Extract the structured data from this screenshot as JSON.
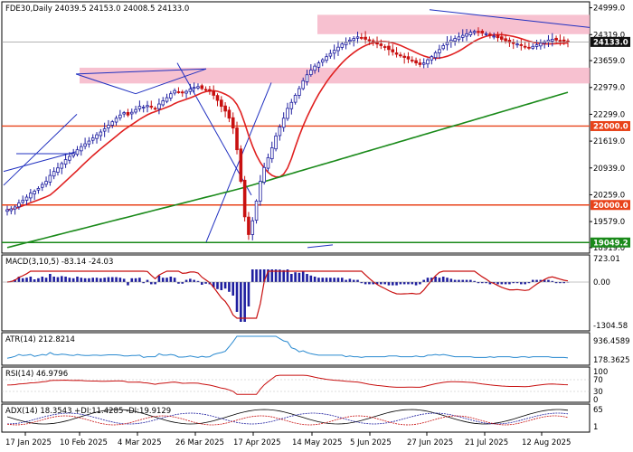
{
  "chart_data": {
    "type": "candlestick",
    "symbol": "FDE30",
    "timeframe": "Daily",
    "ohlc_label": "24039.5 24153.0 24008.5 24133.0",
    "last_price": "24133.0",
    "y_ticks": [
      "24999.0",
      "24319.0",
      "23659.0",
      "22979.0",
      "22299.0",
      "21619.0",
      "20939.0",
      "20259.0",
      "19579.0",
      "18919.0"
    ],
    "x_ticks": [
      "17 Jan 2025",
      "10 Feb 2025",
      "4 Mar 2025",
      "26 Mar 2025",
      "17 Apr 2025",
      "14 May 2025",
      "5 Jun 2025",
      "27 Jun 2025",
      "21 Jul 2025",
      "12 Aug 2025"
    ],
    "horizontal_levels": [
      {
        "label": "22000.0",
        "value": 22000,
        "color": "#e8431a"
      },
      {
        "label": "20000.0",
        "value": 20000,
        "color": "#e8431a"
      },
      {
        "label": "19049.2",
        "value": 19049.2,
        "color": "#1a8a1a"
      }
    ],
    "colors": {
      "ma_fast": "#e02020",
      "ma_slow": "#1a8a1a",
      "zone": "#f6b6c8",
      "trendline": "#2030c0",
      "bull": "#1f1fa0",
      "bear": "#c81010",
      "level": "#e8431a"
    },
    "close_series": [
      19880,
      19900,
      19950,
      20050,
      20120,
      20200,
      20300,
      20350,
      20420,
      20520,
      20600,
      20750,
      20850,
      20940,
      21050,
      21150,
      21230,
      21300,
      21400,
      21480,
      21550,
      21620,
      21700,
      21780,
      21850,
      21930,
      22020,
      22110,
      22200,
      22280,
      22340,
      22280,
      22350,
      22420,
      22500,
      22480,
      22520,
      22480,
      22440,
      22560,
      22640,
      22720,
      22820,
      22900,
      22870,
      22840,
      22880,
      22940,
      22980,
      23000,
      22950,
      22920,
      22880,
      22780,
      22650,
      22500,
      22380,
      22200,
      21950,
      21400,
      20600,
      19700,
      19250,
      19600,
      20100,
      20600,
      20950,
      21200,
      21450,
      21750,
      21980,
      22200,
      22450,
      22600,
      22780,
      22950,
      23150,
      23300,
      23420,
      23520,
      23600,
      23680,
      23760,
      23840,
      23920,
      24000,
      24080,
      24120,
      24180,
      24220,
      24260,
      24240,
      24200,
      24160,
      24120,
      24080,
      24040,
      24000,
      23940,
      23880,
      23820,
      23780,
      23740,
      23700,
      23660,
      23600,
      23560,
      23600,
      23680,
      23760,
      23860,
      23940,
      24040,
      24120,
      24180,
      24220,
      24260,
      24300,
      24340,
      24380,
      24400,
      24380,
      24360,
      24340,
      24300,
      24280,
      24240,
      24200,
      24160,
      24120,
      24100,
      24080,
      24040,
      24000,
      23980,
      24020,
      24060,
      24100,
      24140,
      24180,
      24200,
      24180,
      24160,
      24140,
      24133
    ],
    "indicators": [
      {
        "name": "MACD",
        "label": "MACD(3,10,5) -83.14 -24.03",
        "y_ticks": [
          "723.01",
          "0.00",
          "-1304.58"
        ]
      },
      {
        "name": "ATR",
        "label": "ATR(14) 212.8214",
        "y_ticks": [
          "936.4589",
          "178.3625"
        ]
      },
      {
        "name": "RSI",
        "label": "RSI(14) 46.9796",
        "y_ticks": [
          "100",
          "70",
          "30",
          "0"
        ]
      },
      {
        "name": "ADX",
        "label": "ADX(14) 18.3543 +DI:11.4285 -DI:19.9129",
        "y_ticks": [
          "65",
          "1"
        ]
      }
    ]
  }
}
